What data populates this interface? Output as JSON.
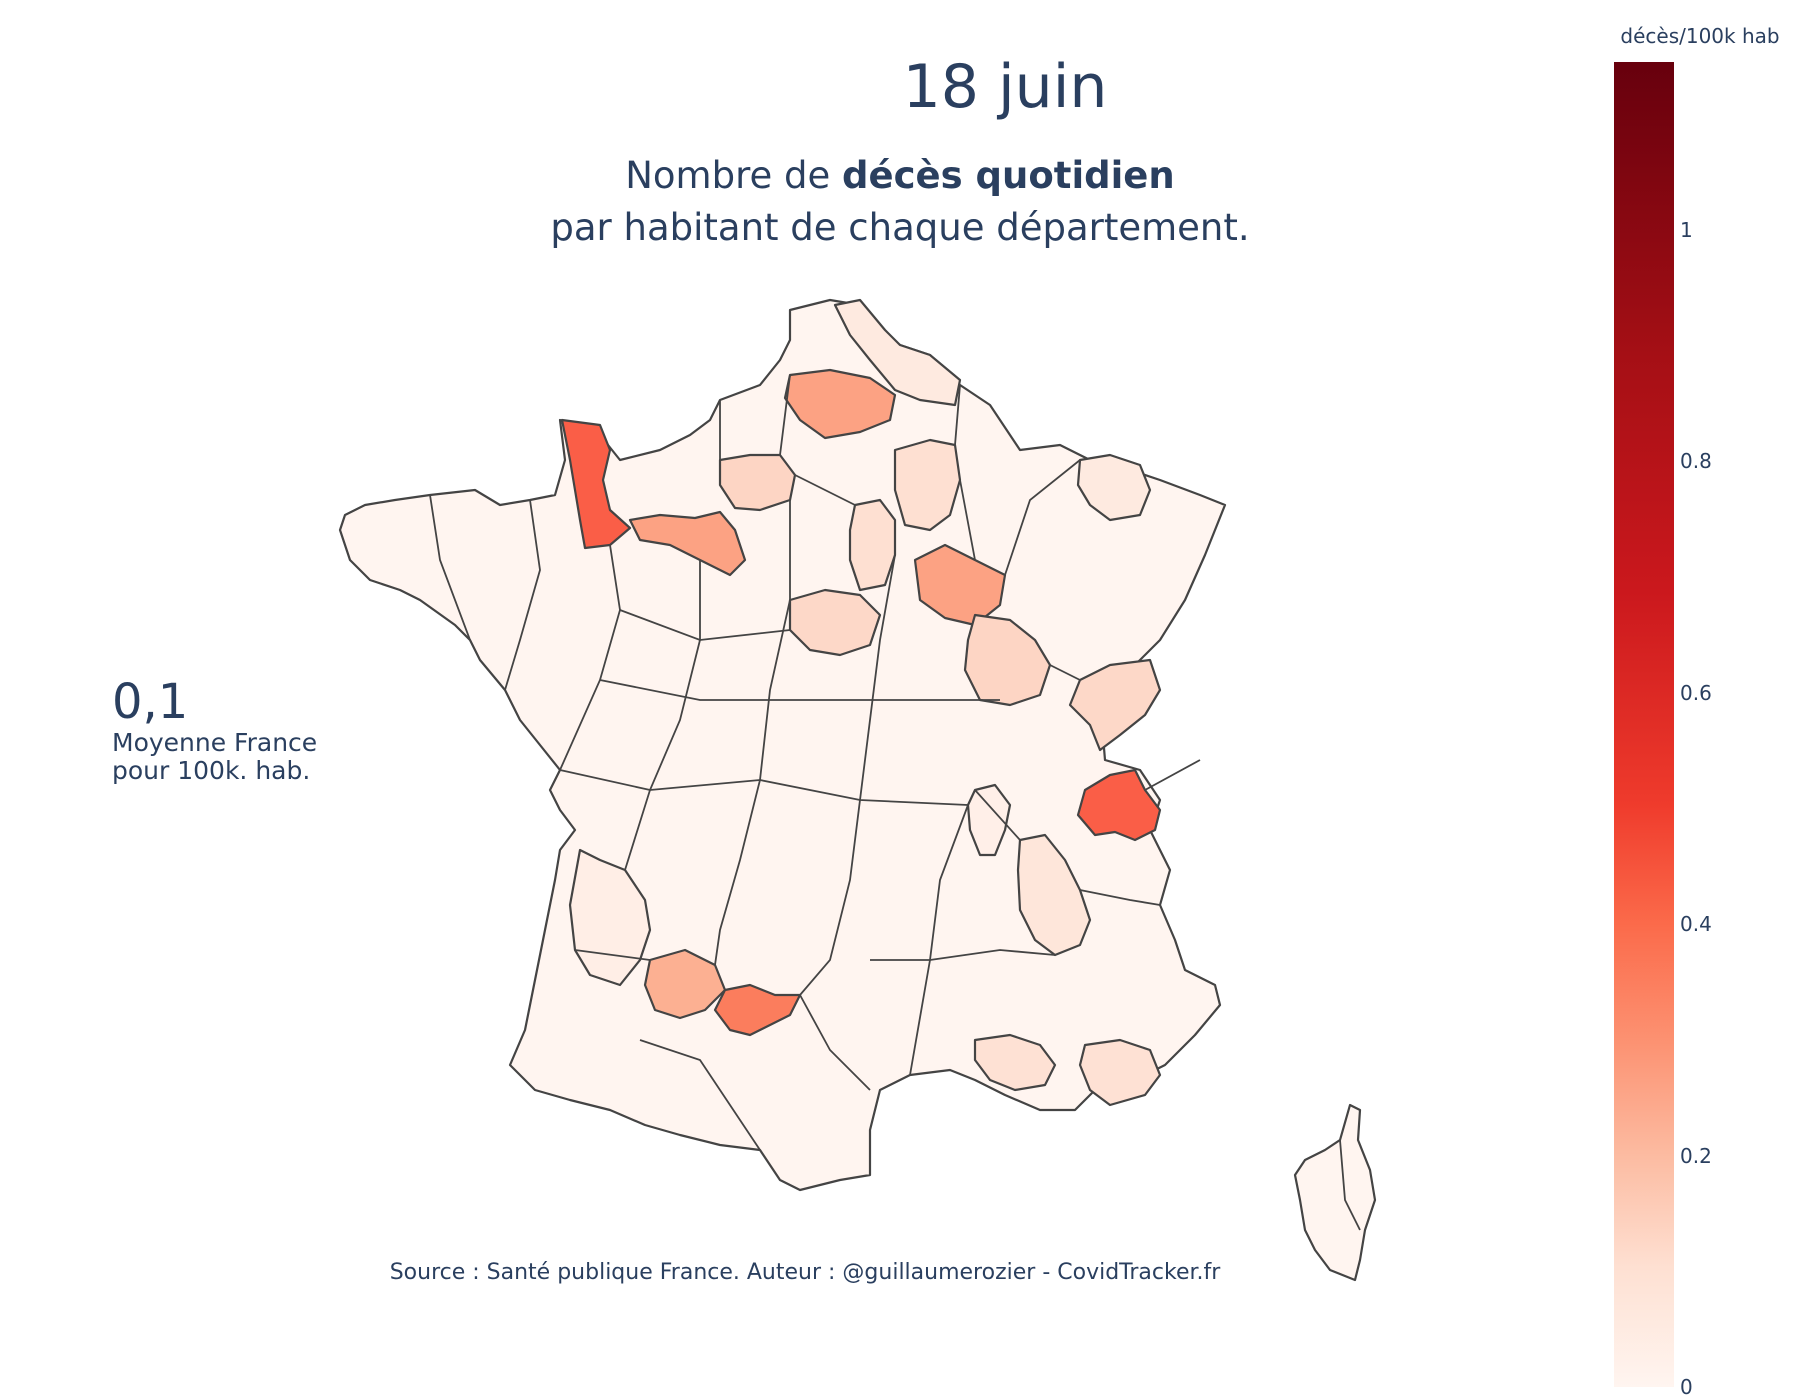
{
  "title": "18 juin",
  "subtitle": {
    "line1_prefix": "Nombre de ",
    "line1_bold": "décès quotidien",
    "line2": "par habitant de chaque département."
  },
  "average": {
    "value": "0,1",
    "label_line1": "Moyenne France",
    "label_line2": "pour 100k. hab."
  },
  "source": "Source : Santé publique France. Auteur : @guillaumerozier - CovidTracker.fr",
  "colorbar": {
    "title": "décès/100k hab",
    "ticks": [
      "0",
      "0.2",
      "0.4",
      "0.6",
      "0.8",
      "1"
    ],
    "range": [
      0,
      1.14
    ],
    "colorscale": "Reds"
  },
  "chart_data": {
    "type": "choropleth",
    "value_unit": "décès/100k hab",
    "highlighted_regions": [
      {
        "area": "Manche",
        "value": 0.62
      },
      {
        "area": "Haute-Savoie",
        "value": 0.6
      },
      {
        "area": "Tarn-et-Garonne",
        "value": 0.5
      },
      {
        "area": "Somme",
        "value": 0.36
      },
      {
        "area": "Orne",
        "value": 0.36
      },
      {
        "area": "Aube",
        "value": 0.35
      },
      {
        "area": "Lot-et-Garonne",
        "value": 0.3
      },
      {
        "area": "Côte-d'Or",
        "value": 0.2
      },
      {
        "area": "Oise",
        "value": 0.17
      },
      {
        "area": "Loiret",
        "value": 0.16
      },
      {
        "area": "Doubs",
        "value": 0.17
      },
      {
        "area": "Seine-et-Marne",
        "value": 0.12
      },
      {
        "area": "Marne",
        "value": 0.14
      },
      {
        "area": "Var",
        "value": 0.12
      },
      {
        "area": "Bouches-du-Rhône",
        "value": 0.12
      },
      {
        "area": "Drôme",
        "value": 0.1
      },
      {
        "area": "Nord",
        "value": 0.1
      },
      {
        "area": "Pas-de-Calais",
        "value": 0.08
      },
      {
        "area": "Moselle",
        "value": 0.08
      },
      {
        "area": "Gironde",
        "value": 0.06
      },
      {
        "area": "Rhône",
        "value": 0.06
      }
    ]
  }
}
